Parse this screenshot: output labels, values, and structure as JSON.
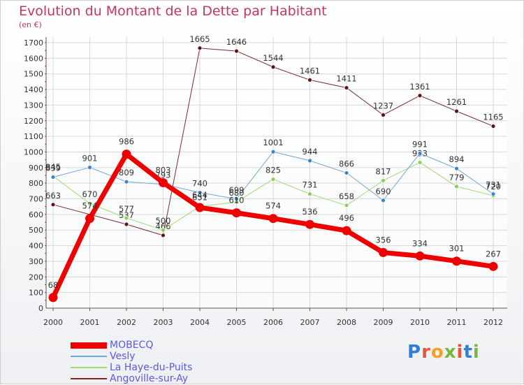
{
  "title": "Evolution du Montant de la Dette par Habitant",
  "subtitle": "(en €)",
  "logo": {
    "text": "Proxiti",
    "letter_colors": [
      "#2f7fd6",
      "#e8543a",
      "#f2a023",
      "#7ab73d",
      "#e8543a",
      "#2f7fd6",
      "#7ab73d"
    ]
  },
  "chart_data": {
    "type": "line",
    "title": "Evolution du Montant de la Dette par Habitant",
    "subtitle": "(en €)",
    "xlabel": "",
    "ylabel": "",
    "x": [
      2000,
      2001,
      2002,
      2003,
      2004,
      2005,
      2006,
      2007,
      2008,
      2009,
      2010,
      2011,
      2012
    ],
    "ylim": [
      0,
      1700
    ],
    "yticks": [
      0,
      100,
      200,
      300,
      400,
      500,
      600,
      700,
      800,
      900,
      1000,
      1100,
      1200,
      1300,
      1400,
      1500,
      1600,
      1700
    ],
    "grid": true,
    "legend_position": "bottom-left",
    "series": [
      {
        "name": "Angoville-sur-Ay",
        "color": "#7a2a2a",
        "point_color": "#5c1414",
        "width": 1,
        "values": [
          663,
          null,
          537,
          466,
          1665,
          1646,
          1544,
          1461,
          1411,
          1237,
          1361,
          1261,
          1165
        ],
        "labels": [
          "663",
          "",
          "537",
          "466",
          "1665",
          "1646",
          "1544",
          "1461",
          "1411",
          "1237",
          "1361",
          "1261",
          "1165"
        ]
      },
      {
        "name": "La Haye-du-Puits",
        "color": "#9ddb74",
        "point_color": "#8ccf5a",
        "width": 1,
        "values": [
          845,
          670,
          577,
          500,
          651,
          680,
          825,
          731,
          658,
          817,
          933,
          779,
          720
        ],
        "labels": [
          "845",
          "670",
          "577",
          "500",
          "651",
          "680",
          "825",
          "731",
          "658",
          "817",
          "933",
          "779",
          "720"
        ]
      },
      {
        "name": "Vesly",
        "color": "#6fa8d6",
        "point_color": "#3d85c6",
        "width": 1,
        "values": [
          839,
          901,
          809,
          793,
          740,
          699,
          1001,
          944,
          866,
          690,
          991,
          894,
          731
        ],
        "labels": [
          "839",
          "901",
          "809",
          "793",
          "740",
          "699",
          "1001",
          "944",
          "866",
          "690",
          "991",
          "894",
          "731"
        ]
      },
      {
        "name": "MOBECQ",
        "color": "#ee0000",
        "point_color": "#ee0000",
        "width": 7,
        "values": [
          68,
          574,
          986,
          803,
          644,
          610,
          574,
          536,
          496,
          356,
          334,
          301,
          267
        ],
        "labels": [
          "68",
          "574",
          "986",
          "803",
          "644",
          "610",
          "574",
          "536",
          "496",
          "356",
          "334",
          "301",
          "267"
        ]
      }
    ],
    "legend_order": [
      "MOBECQ",
      "Vesly",
      "La Haye-du-Puits",
      "Angoville-sur-Ay"
    ]
  }
}
